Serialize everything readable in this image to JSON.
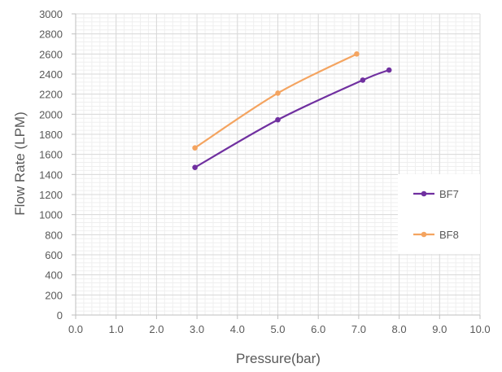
{
  "chart_data": {
    "type": "line",
    "title": "",
    "xlabel": "Pressure(bar)",
    "ylabel": "Flow Rate (LPM)",
    "xlim": [
      0,
      10
    ],
    "ylim": [
      0,
      3000
    ],
    "x_ticks": [
      "0.0",
      "1.0",
      "2.0",
      "3.0",
      "4.0",
      "5.0",
      "6.0",
      "7.0",
      "8.0",
      "9.0",
      "10.0"
    ],
    "y_ticks": [
      "0",
      "200",
      "400",
      "600",
      "800",
      "1000",
      "1200",
      "1400",
      "1600",
      "1800",
      "2000",
      "2200",
      "2400",
      "2600",
      "2800",
      "3000"
    ],
    "grid": "major and minor",
    "smooth": true,
    "legend_position": "right",
    "series": [
      {
        "name": "BF7",
        "color": "#7030A0",
        "x": [
          2.95,
          5.0,
          7.1,
          7.75
        ],
        "y": [
          1470,
          1945,
          2340,
          2440
        ]
      },
      {
        "name": "BF8",
        "color": "#F4A460",
        "x": [
          2.95,
          5.0,
          6.95
        ],
        "y": [
          1665,
          2210,
          2600
        ]
      }
    ]
  }
}
